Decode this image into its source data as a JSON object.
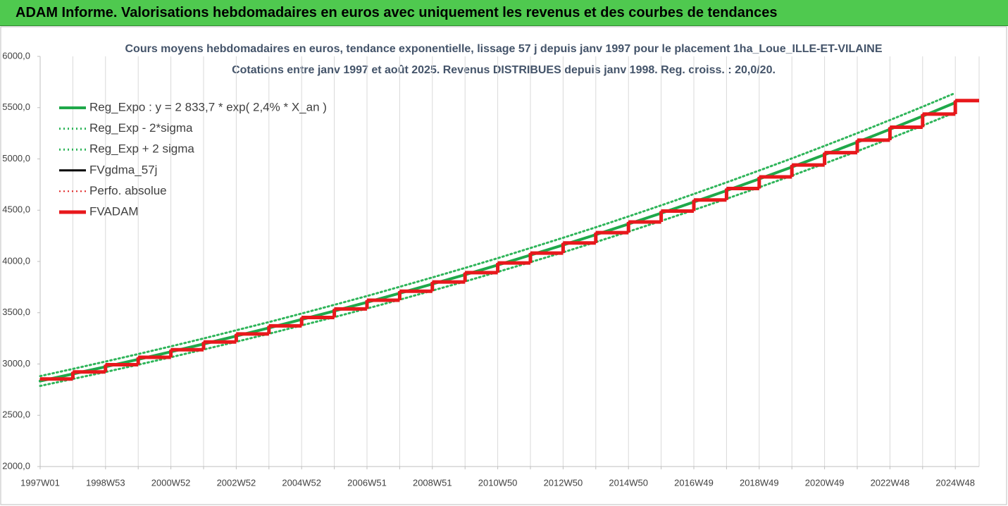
{
  "header": {
    "title": "ADAM Informe. Valorisations hebdomadaires en euros avec uniquement les revenus et des courbes de tendances"
  },
  "chart_data": {
    "type": "line",
    "title": "Cours moyens hebdomadaires en euros, tendance exponentielle, lissage 57 j depuis janv 1997 pour le placement 1ha_Loue_ILLE-ET-VILAINE",
    "subtitle": "Cotations entre janv 1997 et août 2025. Revenus DISTRIBUES depuis janv 1998. Reg. croiss. : 20,0/20.",
    "categories": [
      "1997W01",
      null,
      "1998W53",
      null,
      "2000W52",
      null,
      "2002W52",
      null,
      "2004W52",
      null,
      "2006W51",
      null,
      "2008W51",
      null,
      "2010W50",
      null,
      "2012W50",
      null,
      "2014W50",
      null,
      "2016W49",
      null,
      "2018W49",
      null,
      "2020W49",
      null,
      "2022W48",
      null,
      "2024W48"
    ],
    "ylim": [
      2000,
      6000
    ],
    "yticks": [
      {
        "value": 2000,
        "label": "2000,0"
      },
      {
        "value": 2500,
        "label": "2500,0"
      },
      {
        "value": 3000,
        "label": "3000,0"
      },
      {
        "value": 3500,
        "label": "3500,0"
      },
      {
        "value": 4000,
        "label": "4000,0"
      },
      {
        "value": 4500,
        "label": "4500,0"
      },
      {
        "value": 5000,
        "label": "5000,0"
      },
      {
        "value": 5500,
        "label": "5500,0"
      },
      {
        "value": 6000,
        "label": "6000,0"
      }
    ],
    "grid": true,
    "legend": "top-left",
    "series": [
      {
        "name": "Reg_Expo : y = 2 833,7 * exp( 2,4% *  X_an )",
        "color": "#1fa84a",
        "style": "solid",
        "step": false,
        "values": [
          2834,
          2903,
          2973,
          3045,
          3119,
          3195,
          3273,
          3352,
          3434,
          3517,
          3602,
          3690,
          3780,
          3871,
          3965,
          4062,
          4160,
          4261,
          4365,
          4471,
          4580,
          4691,
          4805,
          4921,
          5041,
          5163,
          5289,
          5417,
          5549
        ]
      },
      {
        "name": "Reg_Exp - 2*sigma",
        "color": "#2fb55a",
        "style": "dotted",
        "step": false,
        "values": [
          2786,
          2854,
          2922,
          2993,
          3066,
          3141,
          3217,
          3295,
          3376,
          3457,
          3541,
          3627,
          3716,
          3805,
          3898,
          3993,
          4089,
          4189,
          4291,
          4395,
          4502,
          4611,
          4723,
          4837,
          4955,
          5075,
          5199,
          5325,
          5455
        ]
      },
      {
        "name": "Reg_Exp + 2 sigma",
        "color": "#2fb55a",
        "style": "dotted",
        "step": false,
        "values": [
          2882,
          2952,
          3024,
          3097,
          3172,
          3249,
          3329,
          3409,
          3492,
          3577,
          3663,
          3753,
          3844,
          3937,
          4032,
          4131,
          4231,
          4333,
          4439,
          4547,
          4658,
          4771,
          4887,
          5005,
          5127,
          5251,
          5379,
          5509,
          5643
        ]
      },
      {
        "name": "FVgdma_57j",
        "color": "#000000",
        "style": "solid",
        "step": true,
        "values": [
          2854,
          2923,
          2993,
          3065,
          3139,
          3215,
          3293,
          3372,
          3454,
          3537,
          3622,
          3710,
          3800,
          3891,
          3985,
          4082,
          4180,
          4281,
          4385,
          4491,
          4600,
          4711,
          4825,
          4941,
          5061,
          5183,
          5309,
          5437,
          5569
        ]
      },
      {
        "name": "Perfo. absolue",
        "color": "#e02020",
        "style": "dotted",
        "step": true,
        "values": [
          2854,
          2923,
          2993,
          3065,
          3139,
          3215,
          3293,
          3372,
          3454,
          3537,
          3622,
          3710,
          3800,
          3891,
          3985,
          4082,
          4180,
          4281,
          4385,
          4491,
          4600,
          4711,
          4825,
          4941,
          5061,
          5183,
          5309,
          5437,
          5569
        ]
      },
      {
        "name": "FVADAM",
        "color": "#e8181c",
        "style": "solid",
        "step": true,
        "values": [
          2854,
          2923,
          2993,
          3065,
          3139,
          3215,
          3293,
          3372,
          3454,
          3537,
          3622,
          3710,
          3800,
          3891,
          3985,
          4082,
          4180,
          4281,
          4385,
          4491,
          4600,
          4711,
          4825,
          4941,
          5061,
          5183,
          5309,
          5437,
          5569
        ]
      }
    ]
  }
}
